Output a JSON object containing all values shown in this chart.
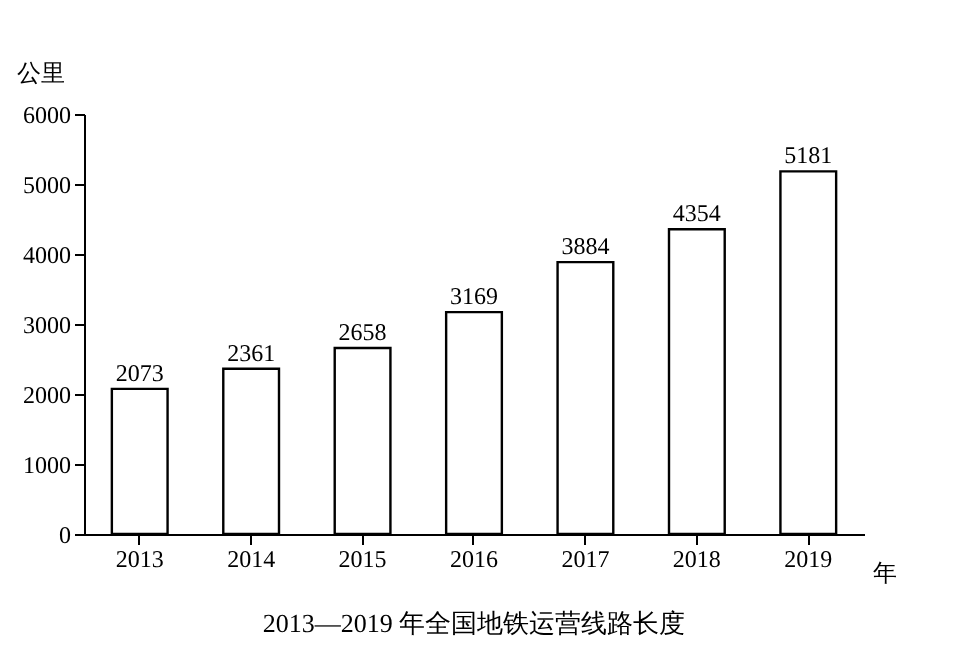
{
  "chart_data": {
    "type": "bar",
    "title": "2013—2019 年全国地铁运营线路长度",
    "xlabel": "年",
    "ylabel": "公里",
    "categories": [
      "2013",
      "2014",
      "2015",
      "2016",
      "2017",
      "2018",
      "2019"
    ],
    "values": [
      2073,
      2361,
      2658,
      3169,
      3884,
      4354,
      5181
    ],
    "color": "#ffffff",
    "ylim": [
      0,
      6000
    ],
    "yticks": [
      0,
      1000,
      2000,
      3000,
      4000,
      5000,
      6000
    ],
    "data_labels": true,
    "grid": false
  }
}
